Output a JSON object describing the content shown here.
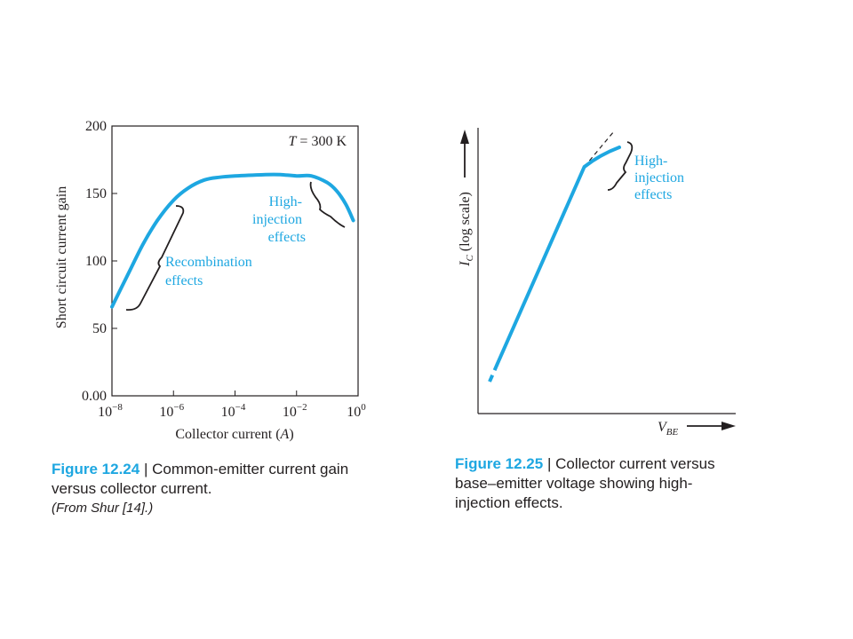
{
  "figure1": {
    "caption_number": "Figure 12.24",
    "caption_sep": " | ",
    "caption_text": "Common-emitter current gain versus collector current.",
    "caption_source": "(From Shur [14].)"
  },
  "figure2": {
    "caption_number": "Figure 12.25",
    "caption_sep": " | ",
    "caption_text": "Collector current versus base–emitter voltage showing high-injection effects."
  },
  "chart_data": [
    {
      "type": "line",
      "title": "",
      "xlabel": "Collector current (A)",
      "ylabel": "Short circuit current gain",
      "x_scale": "log",
      "xlim": [
        1e-08,
        1
      ],
      "ylim": [
        0,
        200
      ],
      "x_ticks": [
        {
          "value": 1e-08,
          "base": "10",
          "exp": "−8"
        },
        {
          "value": 1e-06,
          "base": "10",
          "exp": "−6"
        },
        {
          "value": 0.0001,
          "base": "10",
          "exp": "−4"
        },
        {
          "value": 0.01,
          "base": "10",
          "exp": "−2"
        },
        {
          "value": 1,
          "base": "10",
          "exp": "0"
        }
      ],
      "y_ticks": [
        {
          "value": 0,
          "label": "0.00"
        },
        {
          "value": 50,
          "label": "50"
        },
        {
          "value": 100,
          "label": "100"
        },
        {
          "value": 150,
          "label": "150"
        },
        {
          "value": 200,
          "label": "200"
        }
      ],
      "temperature_label": "T = 300 K",
      "series": [
        {
          "color": "#1ea7e1",
          "x": [
            1e-08,
            3e-08,
            1e-07,
            3e-07,
            1e-06,
            3e-06,
            1e-05,
            3e-05,
            0.0001,
            0.001,
            0.003,
            0.01,
            0.03,
            0.1,
            0.2,
            0.4,
            0.7
          ],
          "y": [
            66,
            88,
            112,
            130,
            145,
            154,
            160,
            162,
            163,
            164,
            164,
            163,
            163,
            158,
            152,
            142,
            130
          ]
        }
      ],
      "annotations": [
        {
          "text": "Recombination effects",
          "lines": [
            "Recombination",
            "effects"
          ],
          "color": "#1ea7e1"
        },
        {
          "text": "High-injection effects",
          "lines": [
            "High-",
            "injection",
            "effects"
          ],
          "color": "#1ea7e1"
        }
      ]
    },
    {
      "type": "line",
      "title": "",
      "xlabel": "V_BE",
      "ylabel": "I_C (log scale)",
      "x_scale": "linear",
      "y_scale": "log",
      "series": [
        {
          "style": "measured",
          "color": "#1ea7e1",
          "x": [
            0.0,
            0.73,
            0.85,
            1.0
          ],
          "y": [
            0.0,
            0.88,
            0.93,
            0.96
          ]
        },
        {
          "style": "ideal-extrapolation-dashed",
          "color": "#231f20",
          "x": [
            0.73,
            0.95
          ],
          "y": [
            0.88,
            1.02
          ]
        }
      ],
      "annotations": [
        {
          "text": "High-injection effects",
          "lines": [
            "High-",
            "injection",
            "effects"
          ],
          "color": "#1ea7e1"
        }
      ]
    }
  ]
}
